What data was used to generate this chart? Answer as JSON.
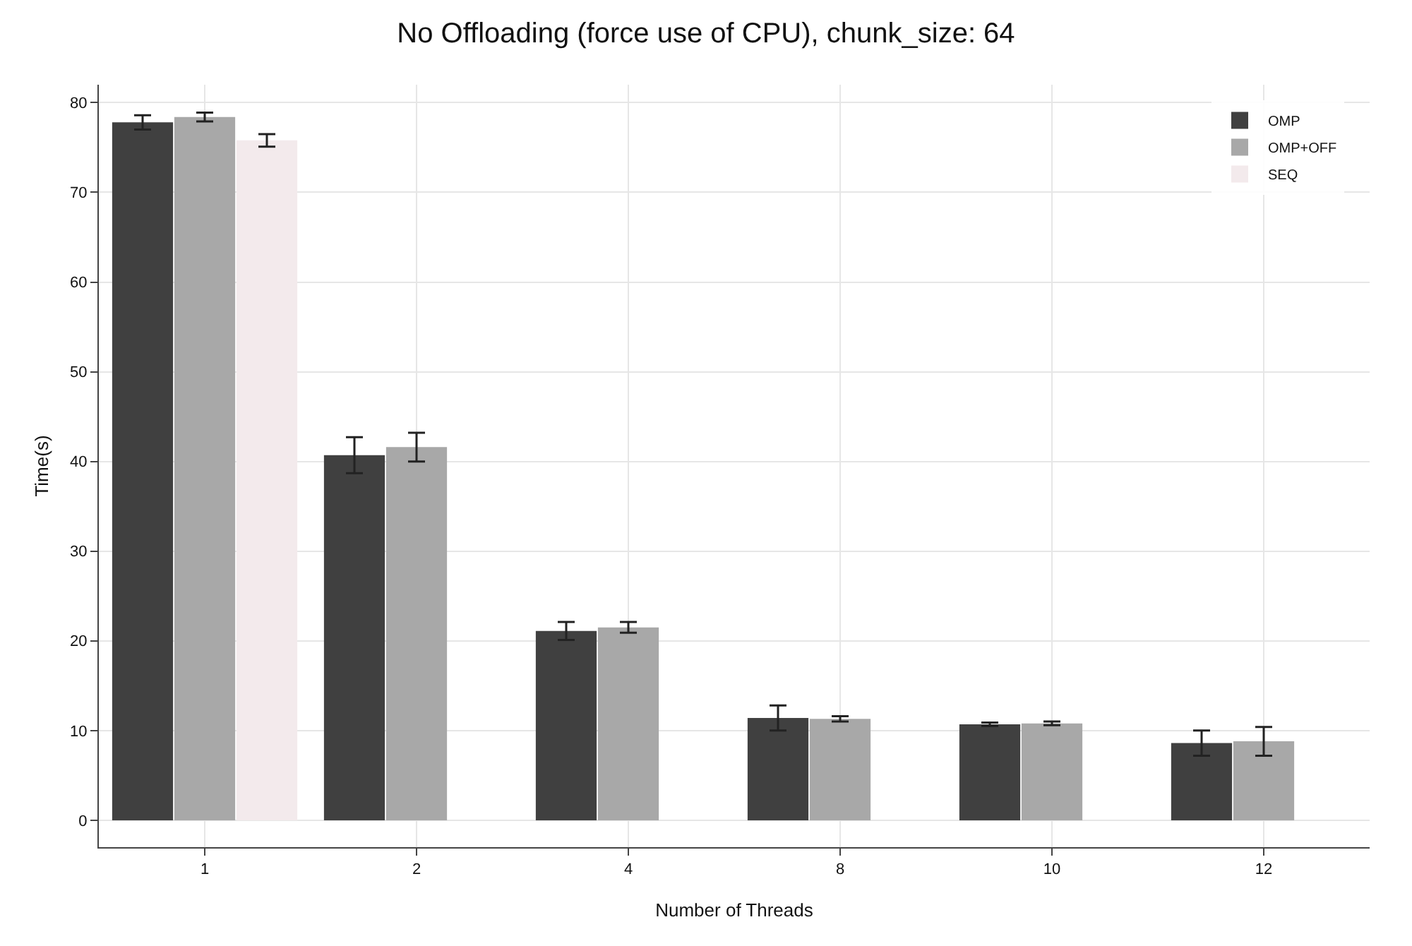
{
  "chart_data": {
    "type": "bar",
    "title": "No Offloading (force use of CPU), chunk_size: 64",
    "xlabel": "Number of Threads",
    "ylabel": "Time(s)",
    "categories": [
      "1",
      "2",
      "4",
      "8",
      "10",
      "12"
    ],
    "series": [
      {
        "name": "OMP",
        "color": "#404040",
        "values": [
          77.8,
          40.7,
          21.1,
          11.4,
          10.7,
          8.6
        ],
        "errors": [
          0.8,
          2,
          1,
          1.4,
          0.2,
          1.4
        ]
      },
      {
        "name": "OMP+OFF",
        "color": "#a8a8a8",
        "values": [
          78.4,
          41.6,
          21.5,
          11.3,
          10.8,
          8.8
        ],
        "errors": [
          0.5,
          1.6,
          0.6,
          0.3,
          0.2,
          1.6
        ]
      },
      {
        "name": "SEQ",
        "color": "#f3eaec",
        "values": [
          75.8,
          null,
          null,
          null,
          null,
          null
        ],
        "errors": [
          0.7,
          null,
          null,
          null,
          null,
          null
        ]
      }
    ],
    "ylim": [
      -3,
      82
    ],
    "yticks": [
      0,
      10,
      20,
      30,
      40,
      50,
      60,
      70,
      80
    ],
    "grid": true,
    "legend": "top right"
  }
}
